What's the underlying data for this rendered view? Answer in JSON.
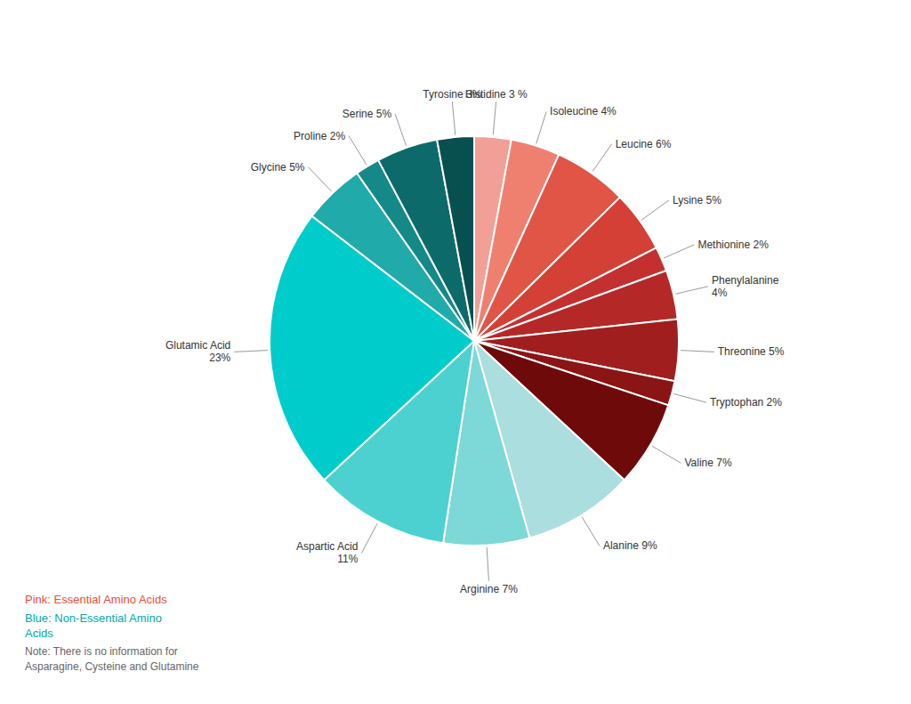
{
  "chart_data": {
    "type": "pie",
    "categories": [
      "Histidine 3 %",
      "Isoleucine 4%",
      "Leucine 6%",
      "Lysine 5%",
      "Methionine 2%",
      "Phenylalanine\n4%",
      "Threonine 5%",
      "Tryptophan 2%",
      "Valine 7%",
      "Alanine 9%",
      "Arginine 7%",
      "Aspartic Acid\n11%",
      "Glutamic Acid\n23%",
      "Glycine 5%",
      "Proline 2%",
      "Serine 5%",
      "Tyrosine 3%"
    ],
    "values": [
      3,
      4,
      6,
      5,
      2,
      4,
      5,
      2,
      7,
      9,
      7,
      11,
      23,
      5,
      2,
      5,
      3
    ],
    "colors": [
      "#F2A097",
      "#EF8070",
      "#E05545",
      "#D44035",
      "#C43030",
      "#B52828",
      "#A01E1E",
      "#8B1515",
      "#6E0A0A",
      "#AADEDF",
      "#7DD8D8",
      "#4DD0D0",
      "#00CCCC",
      "#20AAAA",
      "#158888",
      "#0D6A6A",
      "#085050"
    ],
    "annotations": [
      {
        "text": "Pink: Essential Amino Acids",
        "color": "#E8503A"
      },
      {
        "text": "Blue: Non-Essential Amino\nAcids",
        "color": "#00AAAA"
      },
      {
        "text": "Note: There is no information for\nAsparagine, Cysteine and Glutamine",
        "color": "#666666"
      }
    ]
  }
}
